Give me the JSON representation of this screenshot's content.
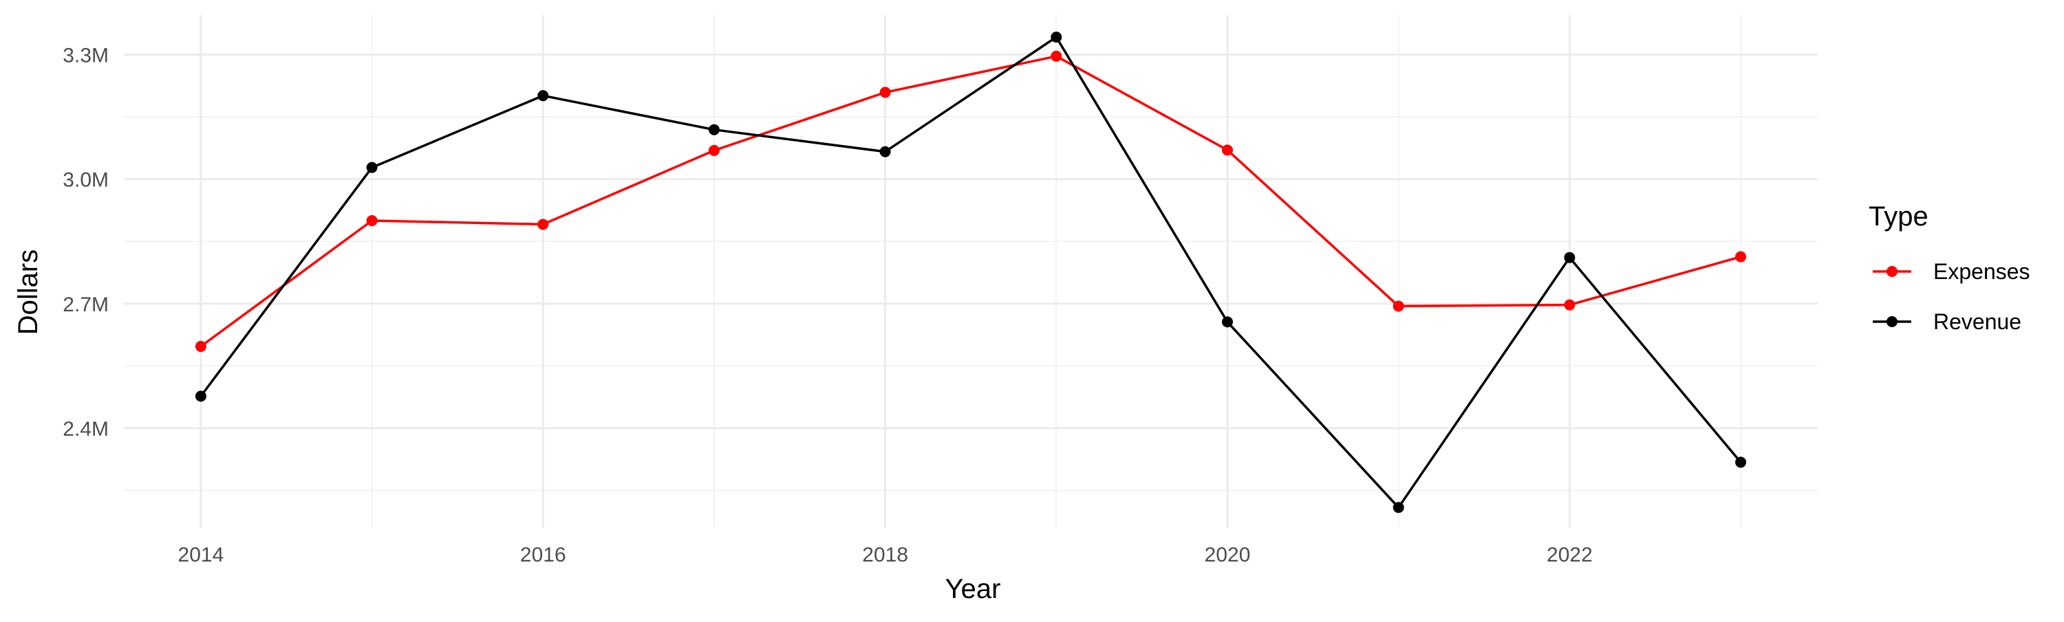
{
  "chart_data": {
    "type": "line",
    "title": "",
    "xlabel": "Year",
    "ylabel": "Dollars",
    "x": [
      2014,
      2015,
      2016,
      2017,
      2018,
      2019,
      2020,
      2021,
      2022,
      2023
    ],
    "x_ticks": [
      2014,
      2016,
      2018,
      2020,
      2022
    ],
    "x_tick_labels": [
      "2014",
      "2016",
      "2018",
      "2020",
      "2022"
    ],
    "xlim": [
      2013.55,
      2023.45
    ],
    "y_ticks": [
      2400000,
      2700000,
      3000000,
      3300000
    ],
    "y_tick_labels": [
      "2.4M",
      "2.7M",
      "3.0M",
      "3.3M"
    ],
    "ylim": [
      2160000,
      3395000
    ],
    "grid": true,
    "legend": {
      "title": "Type",
      "position": "right"
    },
    "series": [
      {
        "name": "Expenses",
        "color": "#ff0000",
        "values": [
          2597000,
          2900000,
          2891000,
          3069000,
          3209000,
          3296000,
          3070000,
          2694000,
          2697000,
          2813000
        ]
      },
      {
        "name": "Revenue",
        "color": "#000000",
        "values": [
          2477000,
          3028000,
          3201000,
          3119000,
          3066000,
          3342000,
          2656000,
          2209000,
          2811000,
          2318000
        ]
      }
    ]
  }
}
